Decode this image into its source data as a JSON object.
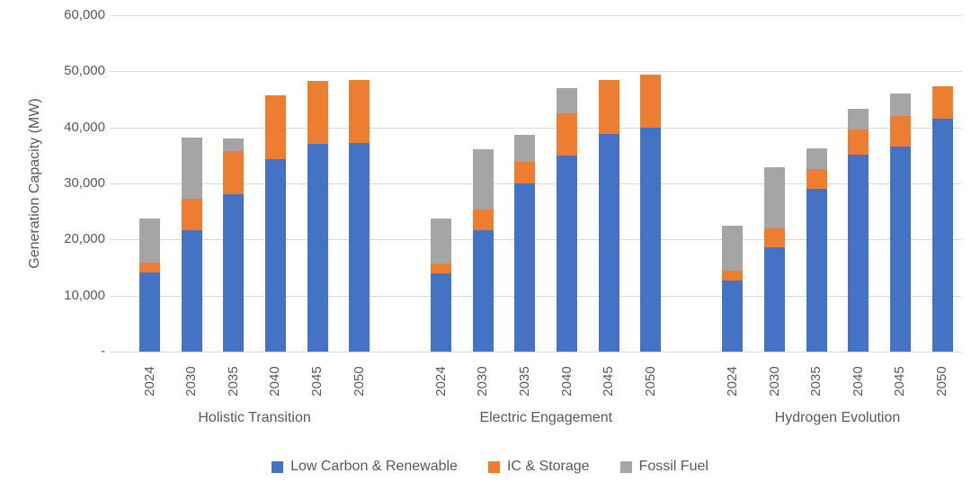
{
  "chart_data": {
    "type": "bar",
    "stacked": true,
    "title": "",
    "ylabel": "Generation Capacity (MW)",
    "xlabel": "",
    "ylim": [
      0,
      60000
    ],
    "grid": "horizontal",
    "legend_position": "bottom",
    "axis_text_color": "#595959",
    "gridline_color": "#d9d9d9",
    "yticks": [
      {
        "value": 0,
        "label": "-"
      },
      {
        "value": 10000,
        "label": "10,000"
      },
      {
        "value": 20000,
        "label": "20,000"
      },
      {
        "value": 30000,
        "label": "30,000"
      },
      {
        "value": 40000,
        "label": "40,000"
      },
      {
        "value": 50000,
        "label": "50,000"
      },
      {
        "value": 60000,
        "label": "60,000"
      }
    ],
    "categories": [
      "2024",
      "2030",
      "2035",
      "2040",
      "2045",
      "2050"
    ],
    "legend": [
      {
        "label": "Low Carbon & Renewable",
        "color": "#4472C4"
      },
      {
        "label": "IC & Storage",
        "color": "#ED7D31"
      },
      {
        "label": "Fossil Fuel",
        "color": "#A5A5A5"
      }
    ],
    "groups": [
      {
        "label": "Holistic Transition",
        "series": [
          {
            "name": "Low Carbon & Renewable",
            "values": [
              14100,
              21600,
              28000,
              34300,
              37000,
              37200
            ]
          },
          {
            "name": "IC & Storage",
            "values": [
              1800,
              5700,
              7800,
              11400,
              11300,
              11200
            ]
          },
          {
            "name": "Fossil Fuel",
            "values": [
              7900,
              10900,
              2300,
              0,
              0,
              0
            ]
          }
        ]
      },
      {
        "label": "Electric Engagement",
        "series": [
          {
            "name": "Low Carbon & Renewable",
            "values": [
              13900,
              21600,
              30000,
              34900,
              38800,
              40000
            ]
          },
          {
            "name": "IC & Storage",
            "values": [
              1900,
              3700,
              3900,
              7600,
              9600,
              9400
            ]
          },
          {
            "name": "Fossil Fuel",
            "values": [
              7900,
              10800,
              4800,
              4500,
              0,
              0
            ]
          }
        ]
      },
      {
        "label": "Hydrogen Evolution",
        "series": [
          {
            "name": "Low Carbon & Renewable",
            "values": [
              12700,
              18600,
              29100,
              35100,
              36600,
              41500
            ]
          },
          {
            "name": "IC & Storage",
            "values": [
              1700,
              3400,
              3500,
              4600,
              5500,
              5800
            ]
          },
          {
            "name": "Fossil Fuel",
            "values": [
              8000,
              10900,
              3700,
              3600,
              3900,
              0
            ]
          }
        ]
      }
    ]
  }
}
